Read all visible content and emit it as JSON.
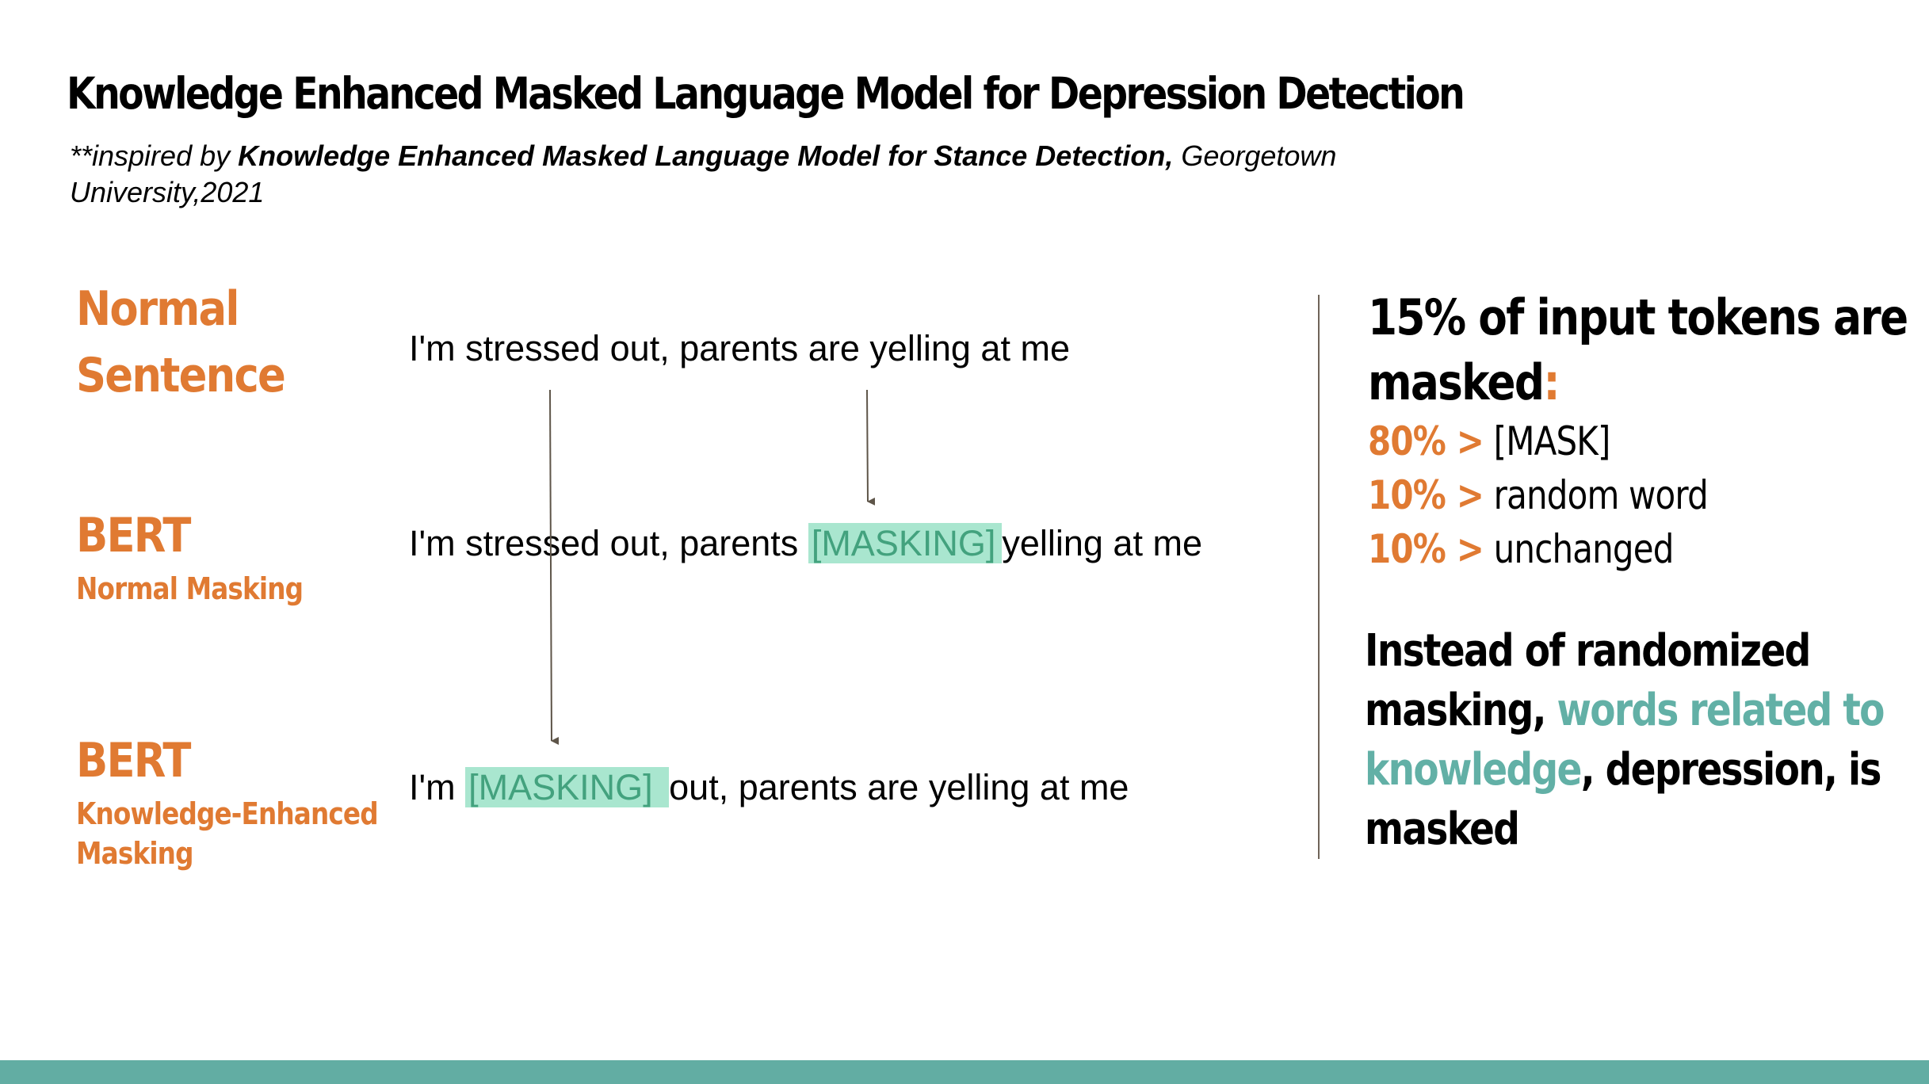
{
  "title": "Knowledge Enhanced Masked Language Model for Depression Detection",
  "subtitle": {
    "prefix": "**inspired by ",
    "paper": "Knowledge Enhanced Masked Language Model for Stance Detection,",
    "suffix": " Georgetown University,2021"
  },
  "rows": {
    "normal": {
      "label_line1": "Normal",
      "label_line2": "Sentence",
      "sentence": "I'm stressed out, parents are yelling at me"
    },
    "bert": {
      "label": "BERT",
      "sublabel": "Normal Masking",
      "before": "I'm stressed out, parents ",
      "mask": "[MASKING]",
      "after": "yelling at me"
    },
    "knowledge": {
      "label": "BERT",
      "sublabel_line1": "Knowledge-Enhanced",
      "sublabel_line2": "Masking",
      "before": "I'm ",
      "mask": "[MASKING] ",
      "after": "out, parents are yelling at me"
    }
  },
  "right_panel": {
    "heading_line1": "15% of input tokens are",
    "heading_line2": "masked",
    "heading_colon": ":",
    "stats": [
      {
        "pct": "80% >",
        "text": " [MASK]"
      },
      {
        "pct": "10% >",
        "text": " random word"
      },
      {
        "pct": "10% >",
        "text": " unchanged"
      }
    ],
    "instead": {
      "line1": "Instead of randomized",
      "line2_a": "masking, ",
      "line2_b": "words related to",
      "line3_a": "knowledge",
      "line3_b": ", depression, is",
      "line4": "masked"
    }
  },
  "colors": {
    "accent_orange": "#e07a32",
    "accent_teal": "#62b0a6",
    "mask_bg": "#a9e6cf",
    "mask_text": "#43a27e",
    "bottom_bar": "#62ada3"
  }
}
